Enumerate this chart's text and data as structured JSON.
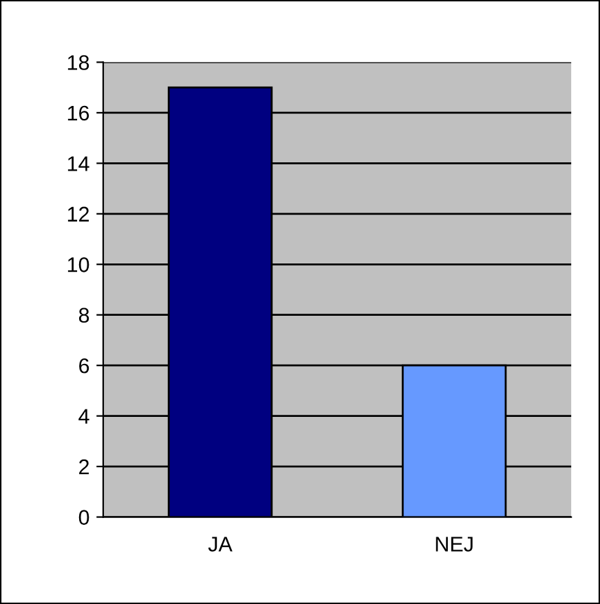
{
  "chart_data": {
    "type": "bar",
    "categories": [
      "JA",
      "NEJ"
    ],
    "values": [
      17,
      6
    ],
    "colors": [
      "#000080",
      "#6699ff"
    ],
    "ylim": [
      0,
      18
    ],
    "yticks": [
      0,
      2,
      4,
      6,
      8,
      10,
      12,
      14,
      16,
      18
    ],
    "grid": "y",
    "legend": false
  }
}
